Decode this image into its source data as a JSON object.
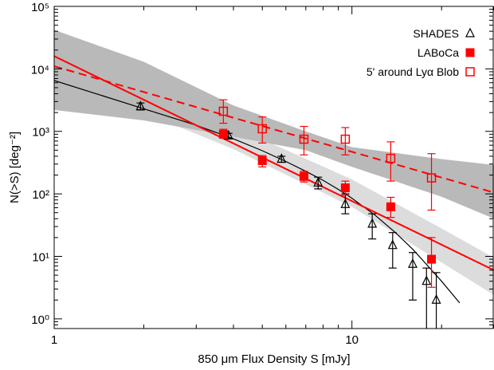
{
  "chart_data": {
    "type": "scatter",
    "title": "",
    "xlabel": "850 μm Flux Density S [mJy]",
    "ylabel": "N(>S) [deg⁻²]",
    "xscale": "log",
    "yscale": "log",
    "xlim": [
      1,
      30
    ],
    "ylim": [
      0.7,
      100000
    ],
    "x_tick_labels": [
      "1",
      "10"
    ],
    "y_tick_labels": [
      "10⁰",
      "10¹",
      "10²",
      "10³",
      "10⁴",
      "10⁵"
    ],
    "legend_position": "top-right",
    "grid": false,
    "bands": [
      {
        "name": "light grey band",
        "color": "#dcdcdc",
        "upper": [
          [
            1.0,
            26000
          ],
          [
            2.0,
            5200
          ],
          [
            4.0,
            1200
          ],
          [
            10.0,
            170
          ],
          [
            20.0,
            28
          ],
          [
            30.0,
            9.5
          ]
        ],
        "lower": [
          [
            1.0,
            7400
          ],
          [
            2.0,
            2000
          ],
          [
            4.0,
            520
          ],
          [
            10.0,
            62
          ],
          [
            20.0,
            8
          ],
          [
            30.0,
            2.4
          ]
        ]
      },
      {
        "name": "dark grey band",
        "color": "#b9b9b9",
        "upper": [
          [
            1.0,
            42000
          ],
          [
            2.0,
            13000
          ],
          [
            4.0,
            2600
          ],
          [
            7.0,
            1000
          ],
          [
            10.0,
            560
          ],
          [
            20.0,
            360
          ],
          [
            30.0,
            290
          ]
        ],
        "lower": [
          [
            1.0,
            2200
          ],
          [
            2.0,
            1500
          ],
          [
            4.0,
            820
          ],
          [
            7.0,
            500
          ],
          [
            10.0,
            270
          ],
          [
            20.0,
            90
          ],
          [
            30.0,
            40
          ]
        ]
      }
    ],
    "lines": [
      {
        "name": "SHADES fit",
        "color": "#000000",
        "style": "solid",
        "width": 1.2,
        "points": [
          [
            1.0,
            6500
          ],
          [
            2.0,
            2300
          ],
          [
            3.0,
            1250
          ],
          [
            4.0,
            760
          ],
          [
            5.0,
            490
          ],
          [
            6.0,
            330
          ],
          [
            7.0,
            230
          ],
          [
            8.0,
            165
          ],
          [
            9.0,
            118
          ],
          [
            10.0,
            85
          ],
          [
            12.0,
            45
          ],
          [
            14.0,
            24
          ],
          [
            16.0,
            13
          ],
          [
            18.0,
            7
          ],
          [
            20.0,
            4
          ],
          [
            23.0,
            1.8
          ]
        ]
      },
      {
        "name": "LABoCa fit",
        "color": "#ff0000",
        "style": "solid",
        "width": 2,
        "points": [
          [
            1.0,
            16000
          ],
          [
            30.0,
            6
          ]
        ]
      },
      {
        "name": "Lyα Blob fit",
        "color": "#ff0000",
        "style": "dashed",
        "width": 2,
        "points": [
          [
            1.0,
            11000
          ],
          [
            30.0,
            105
          ]
        ]
      }
    ],
    "series": [
      {
        "name": "SHADES",
        "marker": "open-triangle",
        "color": "#000000",
        "points": [
          {
            "x": 1.95,
            "y": 2500,
            "lo": 2200,
            "hi": 2850
          },
          {
            "x": 3.85,
            "y": 850,
            "lo": 780,
            "hi": 930
          },
          {
            "x": 5.8,
            "y": 360,
            "lo": 320,
            "hi": 400
          },
          {
            "x": 7.7,
            "y": 150,
            "lo": 120,
            "hi": 185
          },
          {
            "x": 9.5,
            "y": 68,
            "lo": 48,
            "hi": 100
          },
          {
            "x": 11.7,
            "y": 33,
            "lo": 19,
            "hi": 48
          },
          {
            "x": 13.7,
            "y": 15,
            "lo": 6.5,
            "hi": 24
          },
          {
            "x": 16.0,
            "y": 7.5,
            "lo": 2.0,
            "hi": 11.5
          },
          {
            "x": 17.8,
            "y": 4.0,
            "lo": 0.7,
            "hi": 6.5
          },
          {
            "x": 19.2,
            "y": 2.0,
            "lo": 0.7,
            "hi": 5.5
          }
        ]
      },
      {
        "name": "LABoCa",
        "marker": "filled-square",
        "color": "#ff0000",
        "points": [
          {
            "x": 3.7,
            "y": 900,
            "lo": 780,
            "hi": 1080
          },
          {
            "x": 5.0,
            "y": 340,
            "lo": 270,
            "hi": 410
          },
          {
            "x": 6.9,
            "y": 190,
            "lo": 155,
            "hi": 230
          },
          {
            "x": 9.5,
            "y": 125,
            "lo": 95,
            "hi": 160
          },
          {
            "x": 13.5,
            "y": 62,
            "lo": 42,
            "hi": 88
          },
          {
            "x": 18.5,
            "y": 9,
            "lo": 3.2,
            "hi": 20
          }
        ]
      },
      {
        "name": "5' around Lyα Blob",
        "marker": "open-square",
        "color": "#ff0000",
        "points": [
          {
            "x": 3.7,
            "y": 2100,
            "lo": 1350,
            "hi": 3200
          },
          {
            "x": 5.0,
            "y": 1100,
            "lo": 650,
            "hi": 1700
          },
          {
            "x": 6.9,
            "y": 750,
            "lo": 420,
            "hi": 1200
          },
          {
            "x": 9.5,
            "y": 750,
            "lo": 420,
            "hi": 1150
          },
          {
            "x": 13.5,
            "y": 370,
            "lo": 160,
            "hi": 680
          },
          {
            "x": 18.5,
            "y": 180,
            "lo": 55,
            "hi": 440
          }
        ]
      }
    ],
    "legend": [
      {
        "label": "SHADES",
        "marker": "open-triangle",
        "color": "#000000"
      },
      {
        "label": "LABoCa",
        "marker": "filled-square",
        "color": "#ff0000"
      },
      {
        "label": "5' around Lyα Blob",
        "marker": "open-square",
        "color": "#ff0000"
      }
    ]
  }
}
